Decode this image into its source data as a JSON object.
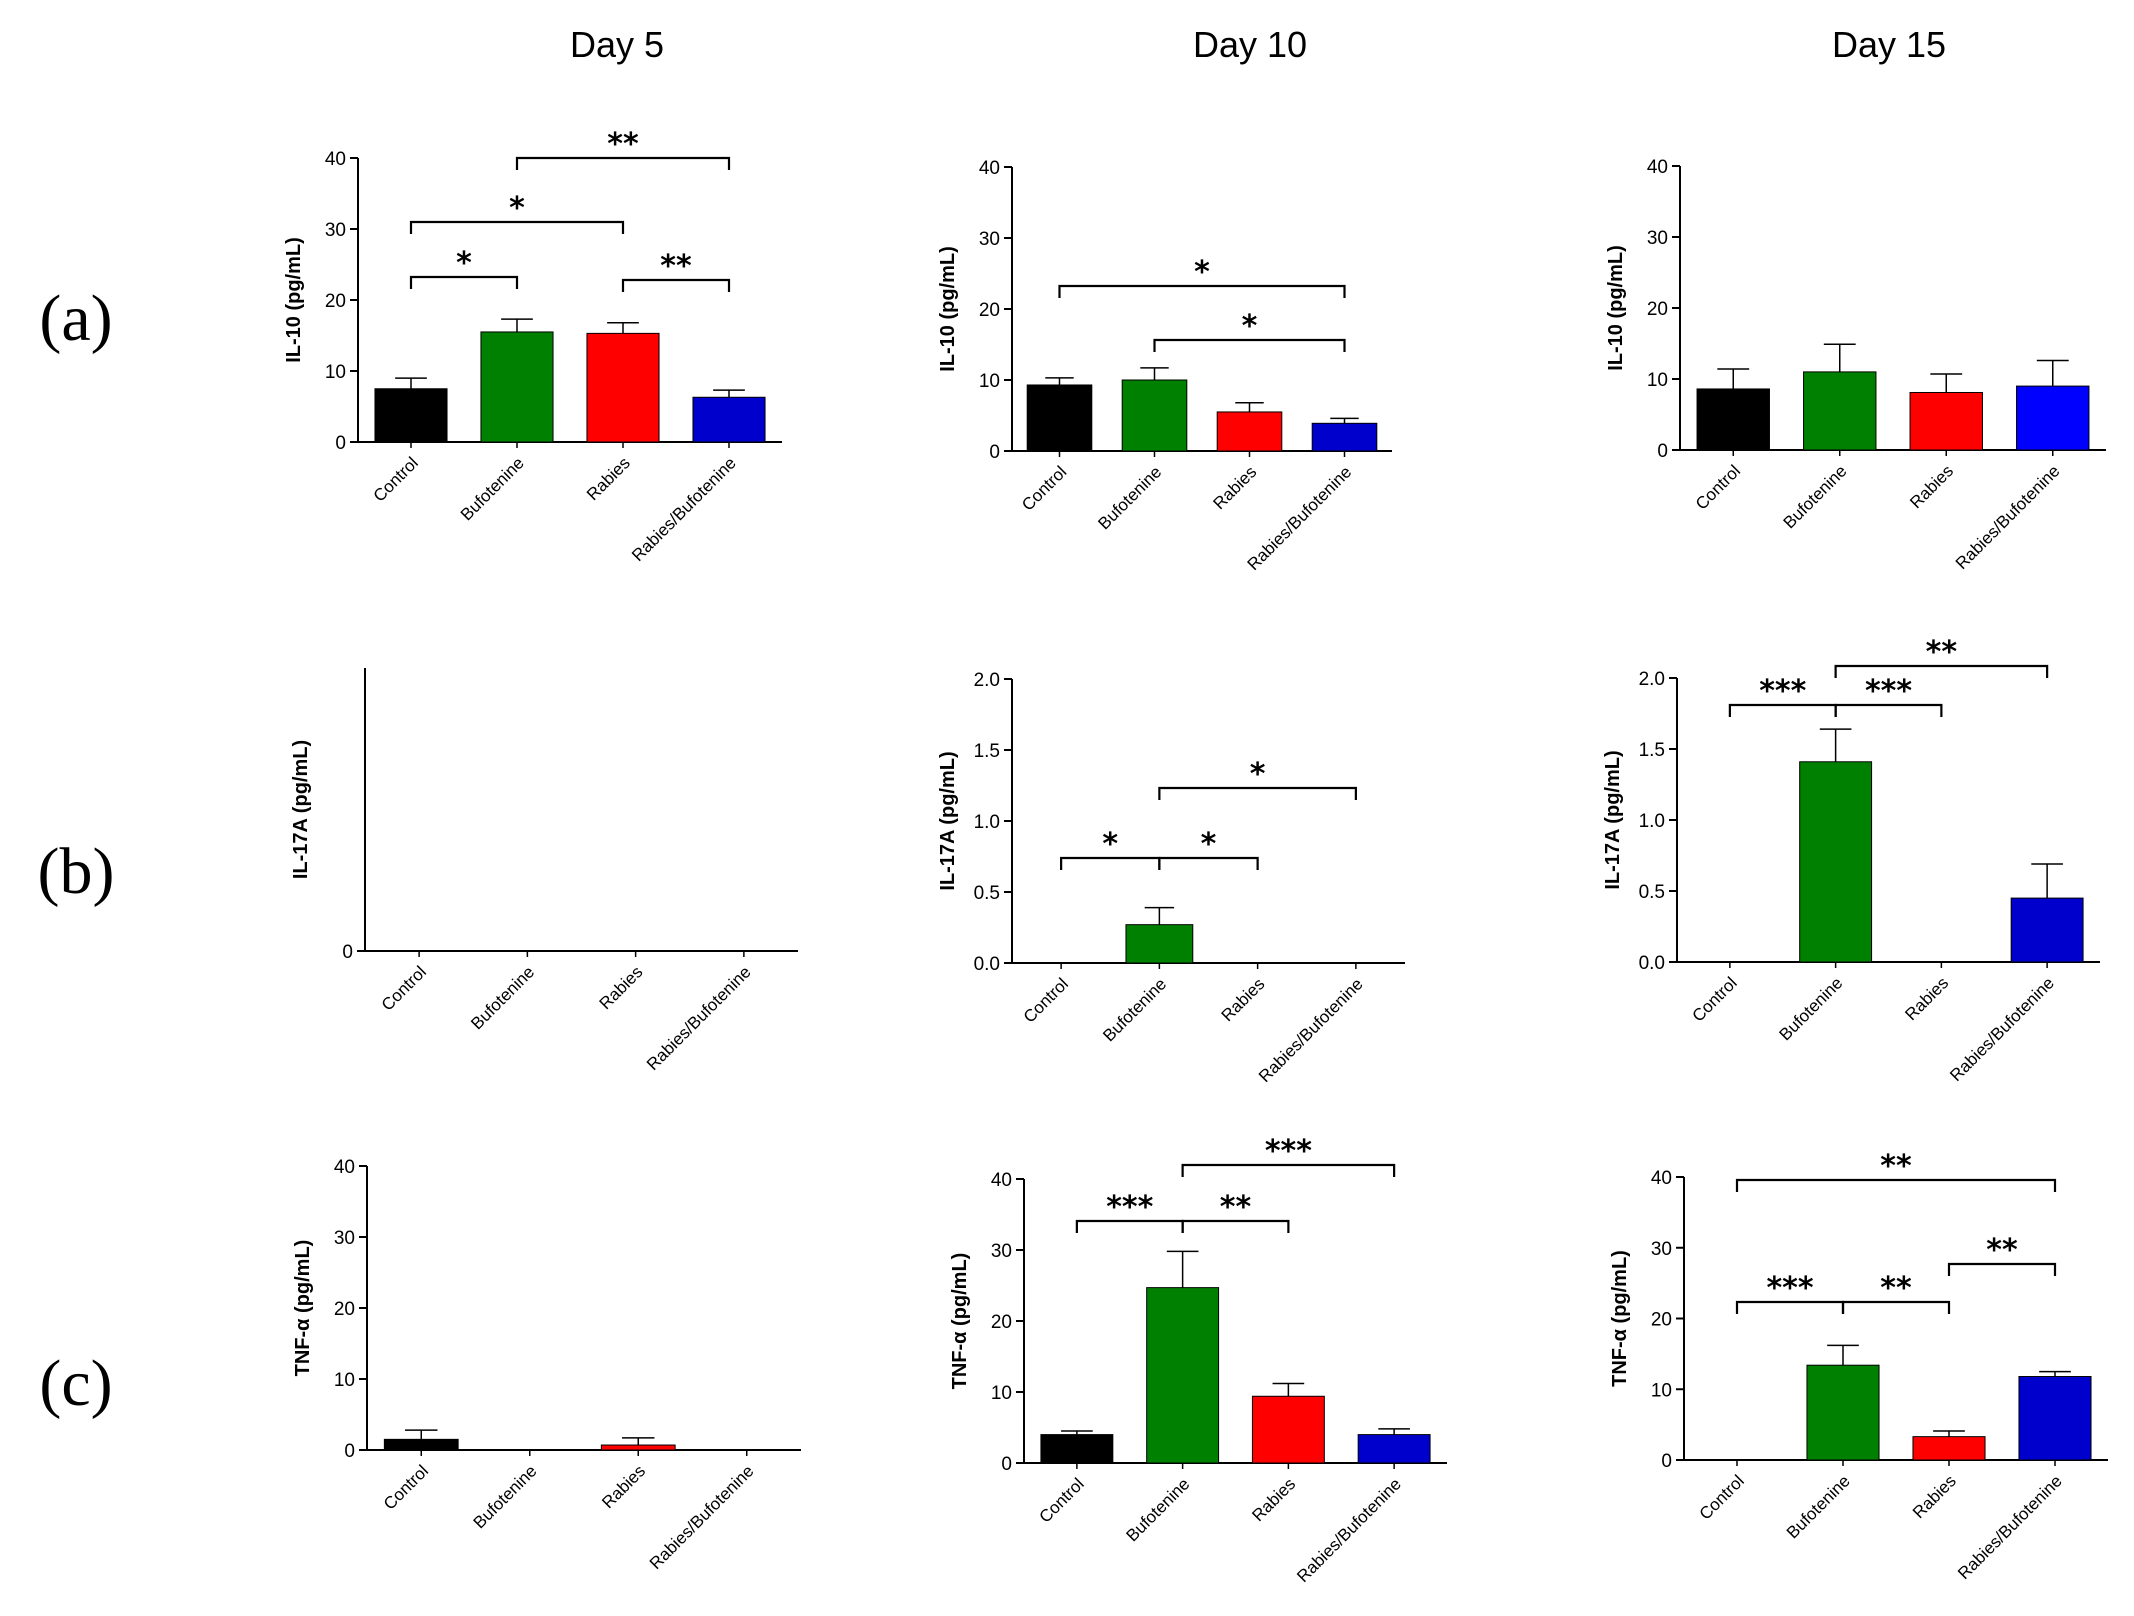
{
  "column_titles": [
    "Day 5",
    "Day 10",
    "Day 15"
  ],
  "row_labels": [
    "(a)",
    "(b)",
    "(c)"
  ],
  "chart_data": [
    {
      "id": "a-d5",
      "type": "bar",
      "row": 0,
      "col": 0,
      "title": "Day 5",
      "ylabel": "IL-10 (pg/mL)",
      "ylim": [
        0,
        40
      ],
      "yticks": [
        "0",
        "10",
        "20",
        "30",
        "40"
      ],
      "categories": [
        "Control",
        "Bufotenine",
        "Rabies",
        "Rabies/Bufotenine"
      ],
      "values": [
        7.5,
        15.5,
        15.3,
        6.3
      ],
      "errors": [
        1.5,
        1.8,
        1.5,
        1.0
      ],
      "colors": [
        "#000000",
        "#008000",
        "#ff0000",
        "#0000cd"
      ],
      "significance": [
        {
          "from": 1,
          "to": 3,
          "label": "**"
        },
        {
          "from": 0,
          "to": 2,
          "label": "*"
        },
        {
          "from": 0,
          "to": 1,
          "label": "*"
        },
        {
          "from": 2,
          "to": 3,
          "label": "**"
        }
      ]
    },
    {
      "id": "a-d10",
      "type": "bar",
      "row": 0,
      "col": 1,
      "title": "Day 10",
      "ylabel": "IL-10 (pg/mL)",
      "ylim": [
        0,
        40
      ],
      "yticks": [
        "0",
        "10",
        "20",
        "30",
        "40"
      ],
      "categories": [
        "Control",
        "Bufotenine",
        "Rabies",
        "Rabies/Bufotenine"
      ],
      "values": [
        9.3,
        10.0,
        5.5,
        3.9
      ],
      "errors": [
        1.0,
        1.7,
        1.3,
        0.7
      ],
      "colors": [
        "#000000",
        "#008000",
        "#ff0000",
        "#0000cd"
      ],
      "significance": [
        {
          "from": 0,
          "to": 3,
          "label": "*"
        },
        {
          "from": 1,
          "to": 3,
          "label": "*"
        }
      ]
    },
    {
      "id": "a-d15",
      "type": "bar",
      "row": 0,
      "col": 2,
      "title": "Day 15",
      "ylabel": "IL-10 (pg/mL)",
      "ylim": [
        0,
        40
      ],
      "yticks": [
        "0",
        "10",
        "20",
        "30",
        "40"
      ],
      "categories": [
        "Control",
        "Bufotenine",
        "Rabies",
        "Rabies/Bufotenine"
      ],
      "values": [
        8.6,
        11.0,
        8.1,
        9.0
      ],
      "errors": [
        2.8,
        3.9,
        2.6,
        3.6
      ],
      "colors": [
        "#000000",
        "#008000",
        "#ff0000",
        "#0000ff"
      ],
      "significance": []
    },
    {
      "id": "b-d5",
      "type": "bar",
      "row": 1,
      "col": 0,
      "title": "Day 5",
      "ylabel": "IL-17A (pg/mL)",
      "ylim": [
        0,
        1
      ],
      "yticks": [
        "0"
      ],
      "categories": [
        "Control",
        "Bufotenine",
        "Rabies",
        "Rabies/Bufotenine"
      ],
      "values": [
        0,
        0,
        0,
        0
      ],
      "errors": [
        0,
        0,
        0,
        0
      ],
      "colors": [
        "#000000",
        "#008000",
        "#ff0000",
        "#0000cd"
      ],
      "significance": []
    },
    {
      "id": "b-d10",
      "type": "bar",
      "row": 1,
      "col": 1,
      "title": "Day 10",
      "ylabel": "IL-17A (pg/mL)",
      "ylim": [
        0,
        2
      ],
      "yticks": [
        "0.0",
        "0.5",
        "1.0",
        "1.5",
        "2.0"
      ],
      "categories": [
        "Control",
        "Bufotenine",
        "Rabies",
        "Rabies/Bufotenine"
      ],
      "values": [
        0,
        0.27,
        0,
        0
      ],
      "errors": [
        0,
        0.12,
        0,
        0
      ],
      "colors": [
        "#000000",
        "#008000",
        "#ff0000",
        "#0000cd"
      ],
      "significance": [
        {
          "from": 1,
          "to": 3,
          "label": "*"
        },
        {
          "from": 0,
          "to": 1,
          "label": "*"
        },
        {
          "from": 1,
          "to": 2,
          "label": "*"
        }
      ]
    },
    {
      "id": "b-d15",
      "type": "bar",
      "row": 1,
      "col": 2,
      "title": "Day 15",
      "ylabel": "IL-17A (pg/mL)",
      "ylim": [
        0,
        2
      ],
      "yticks": [
        "0.0",
        "0.5",
        "1.0",
        "1.5",
        "2.0"
      ],
      "categories": [
        "Control",
        "Bufotenine",
        "Rabies",
        "Rabies/Bufotenine"
      ],
      "values": [
        0,
        1.41,
        0,
        0.45
      ],
      "errors": [
        0,
        0.23,
        0,
        0.24
      ],
      "colors": [
        "#000000",
        "#008000",
        "#ff0000",
        "#0000cd"
      ],
      "significance": [
        {
          "from": 1,
          "to": 3,
          "label": "**"
        },
        {
          "from": 0,
          "to": 1,
          "label": "***"
        },
        {
          "from": 1,
          "to": 2,
          "label": "***"
        }
      ]
    },
    {
      "id": "c-d5",
      "type": "bar",
      "row": 2,
      "col": 0,
      "title": "Day 5",
      "ylabel": "TNF-α (pg/mL)",
      "ylim": [
        0,
        40
      ],
      "yticks": [
        "0",
        "10",
        "20",
        "30",
        "40"
      ],
      "categories": [
        "Control",
        "Bufotenine",
        "Rabies",
        "Rabies/Bufotenine"
      ],
      "values": [
        1.5,
        0,
        0.7,
        0
      ],
      "errors": [
        1.3,
        0,
        1.0,
        0
      ],
      "colors": [
        "#000000",
        "#008000",
        "#ff0000",
        "#0000cd"
      ],
      "significance": []
    },
    {
      "id": "c-d10",
      "type": "bar",
      "row": 2,
      "col": 1,
      "title": "Day 10",
      "ylabel": "TNF-α (pg/mL)",
      "ylim": [
        0,
        40
      ],
      "yticks": [
        "0",
        "10",
        "20",
        "30",
        "40"
      ],
      "categories": [
        "Control",
        "Bufotenine",
        "Rabies",
        "Rabies/Bufotenine"
      ],
      "values": [
        4.0,
        24.7,
        9.4,
        4.0
      ],
      "errors": [
        0.5,
        5.1,
        1.8,
        0.8
      ],
      "colors": [
        "#000000",
        "#008000",
        "#ff0000",
        "#0000cd"
      ],
      "significance": [
        {
          "from": 1,
          "to": 3,
          "label": "***"
        },
        {
          "from": 0,
          "to": 1,
          "label": "***"
        },
        {
          "from": 1,
          "to": 2,
          "label": "**"
        }
      ]
    },
    {
      "id": "c-d15",
      "type": "bar",
      "row": 2,
      "col": 2,
      "title": "Day 15",
      "ylabel": "TNF-α (pg/mL)",
      "ylim": [
        0,
        40
      ],
      "yticks": [
        "0",
        "10",
        "20",
        "30",
        "40"
      ],
      "categories": [
        "Control",
        "Bufotenine",
        "Rabies",
        "Rabies/Bufotenine"
      ],
      "values": [
        0,
        13.4,
        3.3,
        11.8
      ],
      "errors": [
        0,
        2.8,
        0.8,
        0.7
      ],
      "colors": [
        "#000000",
        "#008000",
        "#ff0000",
        "#0000cd"
      ],
      "significance": [
        {
          "from": 0,
          "to": 3,
          "label": "**"
        },
        {
          "from": 0,
          "to": 1,
          "label": "***"
        },
        {
          "from": 1,
          "to": 2,
          "label": "**"
        },
        {
          "from": 2,
          "to": 3,
          "label": "**"
        }
      ]
    }
  ]
}
